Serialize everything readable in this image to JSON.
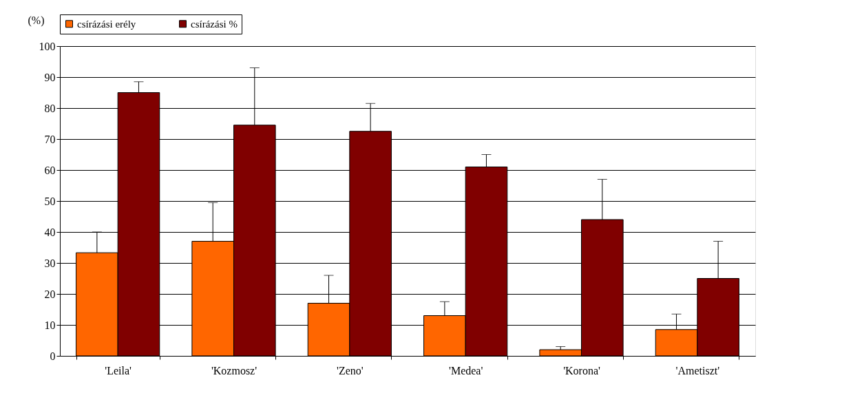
{
  "chart_data": {
    "type": "bar",
    "ylabel": "(%)",
    "categories": [
      "'Leila'",
      "'Kozmosz'",
      "'Zeno'",
      "'Medea'",
      "'Korona'",
      "'Ametiszt'"
    ],
    "series": [
      {
        "name": "csírázási erély",
        "color": "#ff6600",
        "values": [
          33.3,
          37,
          17,
          13,
          2,
          8.5
        ],
        "errors": [
          6.7,
          12.5,
          9,
          4.5,
          1,
          5
        ]
      },
      {
        "name": "csírázási %",
        "color": "#800000",
        "values": [
          85,
          74.5,
          72.5,
          61,
          44,
          25
        ],
        "errors": [
          3.5,
          18.5,
          9,
          4,
          13,
          12
        ]
      }
    ],
    "ylim": [
      0,
      100
    ],
    "yticks": [
      0,
      10,
      20,
      30,
      40,
      50,
      60,
      70,
      80,
      90,
      100
    ],
    "grid": "y",
    "legend": "top"
  }
}
